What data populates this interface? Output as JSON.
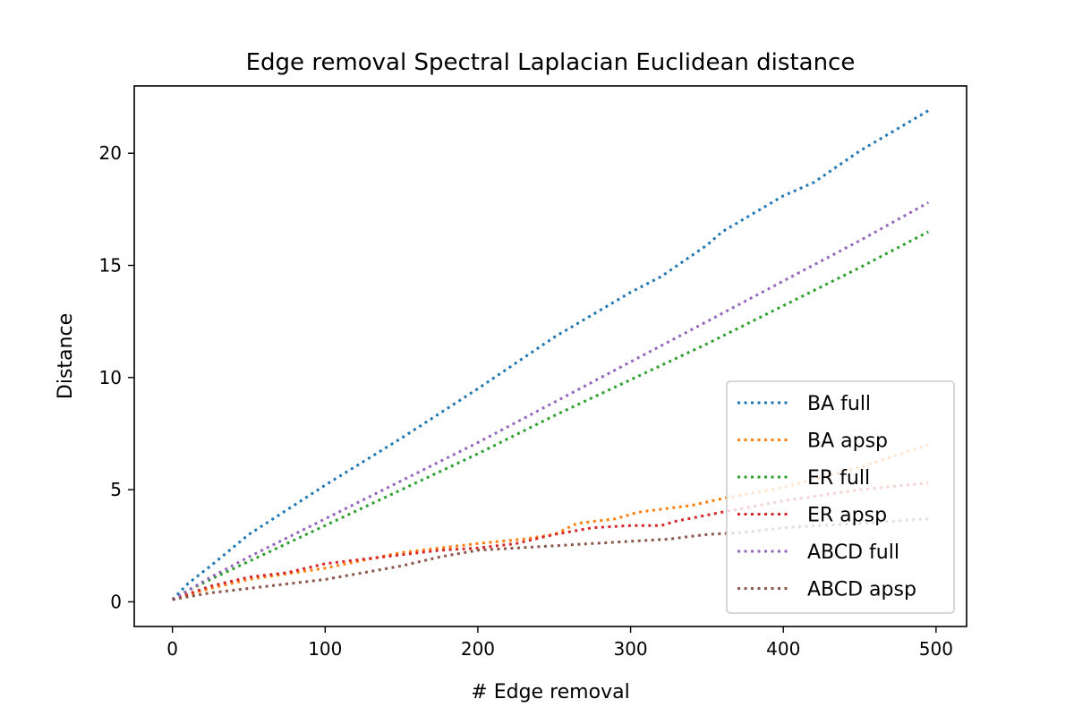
{
  "chart_data": {
    "type": "line",
    "title": "Edge removal Spectral Laplacian Euclidean distance",
    "xlabel": "# Edge removal",
    "ylabel": "Distance",
    "xlim": [
      -25,
      520
    ],
    "ylim": [
      -1.1,
      23
    ],
    "xticks": [
      0,
      100,
      200,
      300,
      400,
      500
    ],
    "yticks": [
      0,
      5,
      10,
      15,
      20
    ],
    "grid": false,
    "legend_position": "lower-right",
    "line_style": "dotted",
    "series": [
      {
        "name": "BA full",
        "color": "#1f77b4",
        "x": [
          0,
          10,
          25,
          50,
          75,
          100,
          150,
          200,
          250,
          300,
          320,
          350,
          360,
          400,
          420,
          450,
          495
        ],
        "y": [
          0.1,
          0.8,
          1.6,
          3.0,
          4.1,
          5.2,
          7.3,
          9.5,
          11.8,
          13.8,
          14.5,
          15.9,
          16.5,
          18.1,
          18.7,
          20.1,
          21.9
        ]
      },
      {
        "name": "BA apsp",
        "color": "#ff7f0e",
        "x": [
          0,
          25,
          50,
          100,
          150,
          200,
          230,
          250,
          265,
          290,
          305,
          340,
          360,
          400,
          450,
          495
        ],
        "y": [
          0.1,
          0.6,
          1.0,
          1.5,
          2.2,
          2.6,
          2.8,
          3.0,
          3.5,
          3.7,
          4.0,
          4.3,
          4.6,
          5.1,
          6.0,
          7.0
        ]
      },
      {
        "name": "ER full",
        "color": "#2ca02c",
        "x": [
          0,
          10,
          25,
          50,
          100,
          150,
          200,
          250,
          300,
          350,
          400,
          450,
          495
        ],
        "y": [
          0.1,
          0.5,
          1.0,
          1.8,
          3.4,
          5.0,
          6.6,
          8.3,
          9.9,
          11.5,
          13.2,
          14.9,
          16.5
        ]
      },
      {
        "name": "ER apsp",
        "color": "#d62728",
        "x": [
          0,
          25,
          50,
          75,
          100,
          125,
          150,
          175,
          200,
          225,
          250,
          275,
          300,
          320,
          330,
          360,
          400,
          450,
          495
        ],
        "y": [
          0.1,
          0.7,
          1.1,
          1.3,
          1.7,
          1.9,
          2.1,
          2.3,
          2.4,
          2.6,
          3.0,
          3.3,
          3.4,
          3.4,
          3.6,
          4.0,
          4.5,
          5.0,
          5.3
        ]
      },
      {
        "name": "ABCD full",
        "color": "#9467bd",
        "x": [
          0,
          10,
          25,
          50,
          100,
          150,
          200,
          250,
          300,
          350,
          400,
          450,
          495
        ],
        "y": [
          0.1,
          0.5,
          1.1,
          2.0,
          3.7,
          5.4,
          7.1,
          8.9,
          10.7,
          12.5,
          14.3,
          16.1,
          17.8
        ]
      },
      {
        "name": "ABCD apsp",
        "color": "#8c564b",
        "x": [
          0,
          25,
          50,
          75,
          100,
          125,
          150,
          175,
          200,
          225,
          250,
          275,
          300,
          325,
          350,
          375,
          400,
          450,
          495
        ],
        "y": [
          0.1,
          0.4,
          0.6,
          0.8,
          1.0,
          1.3,
          1.6,
          2.0,
          2.3,
          2.4,
          2.5,
          2.6,
          2.7,
          2.8,
          3.0,
          3.1,
          3.3,
          3.5,
          3.7
        ]
      }
    ]
  }
}
